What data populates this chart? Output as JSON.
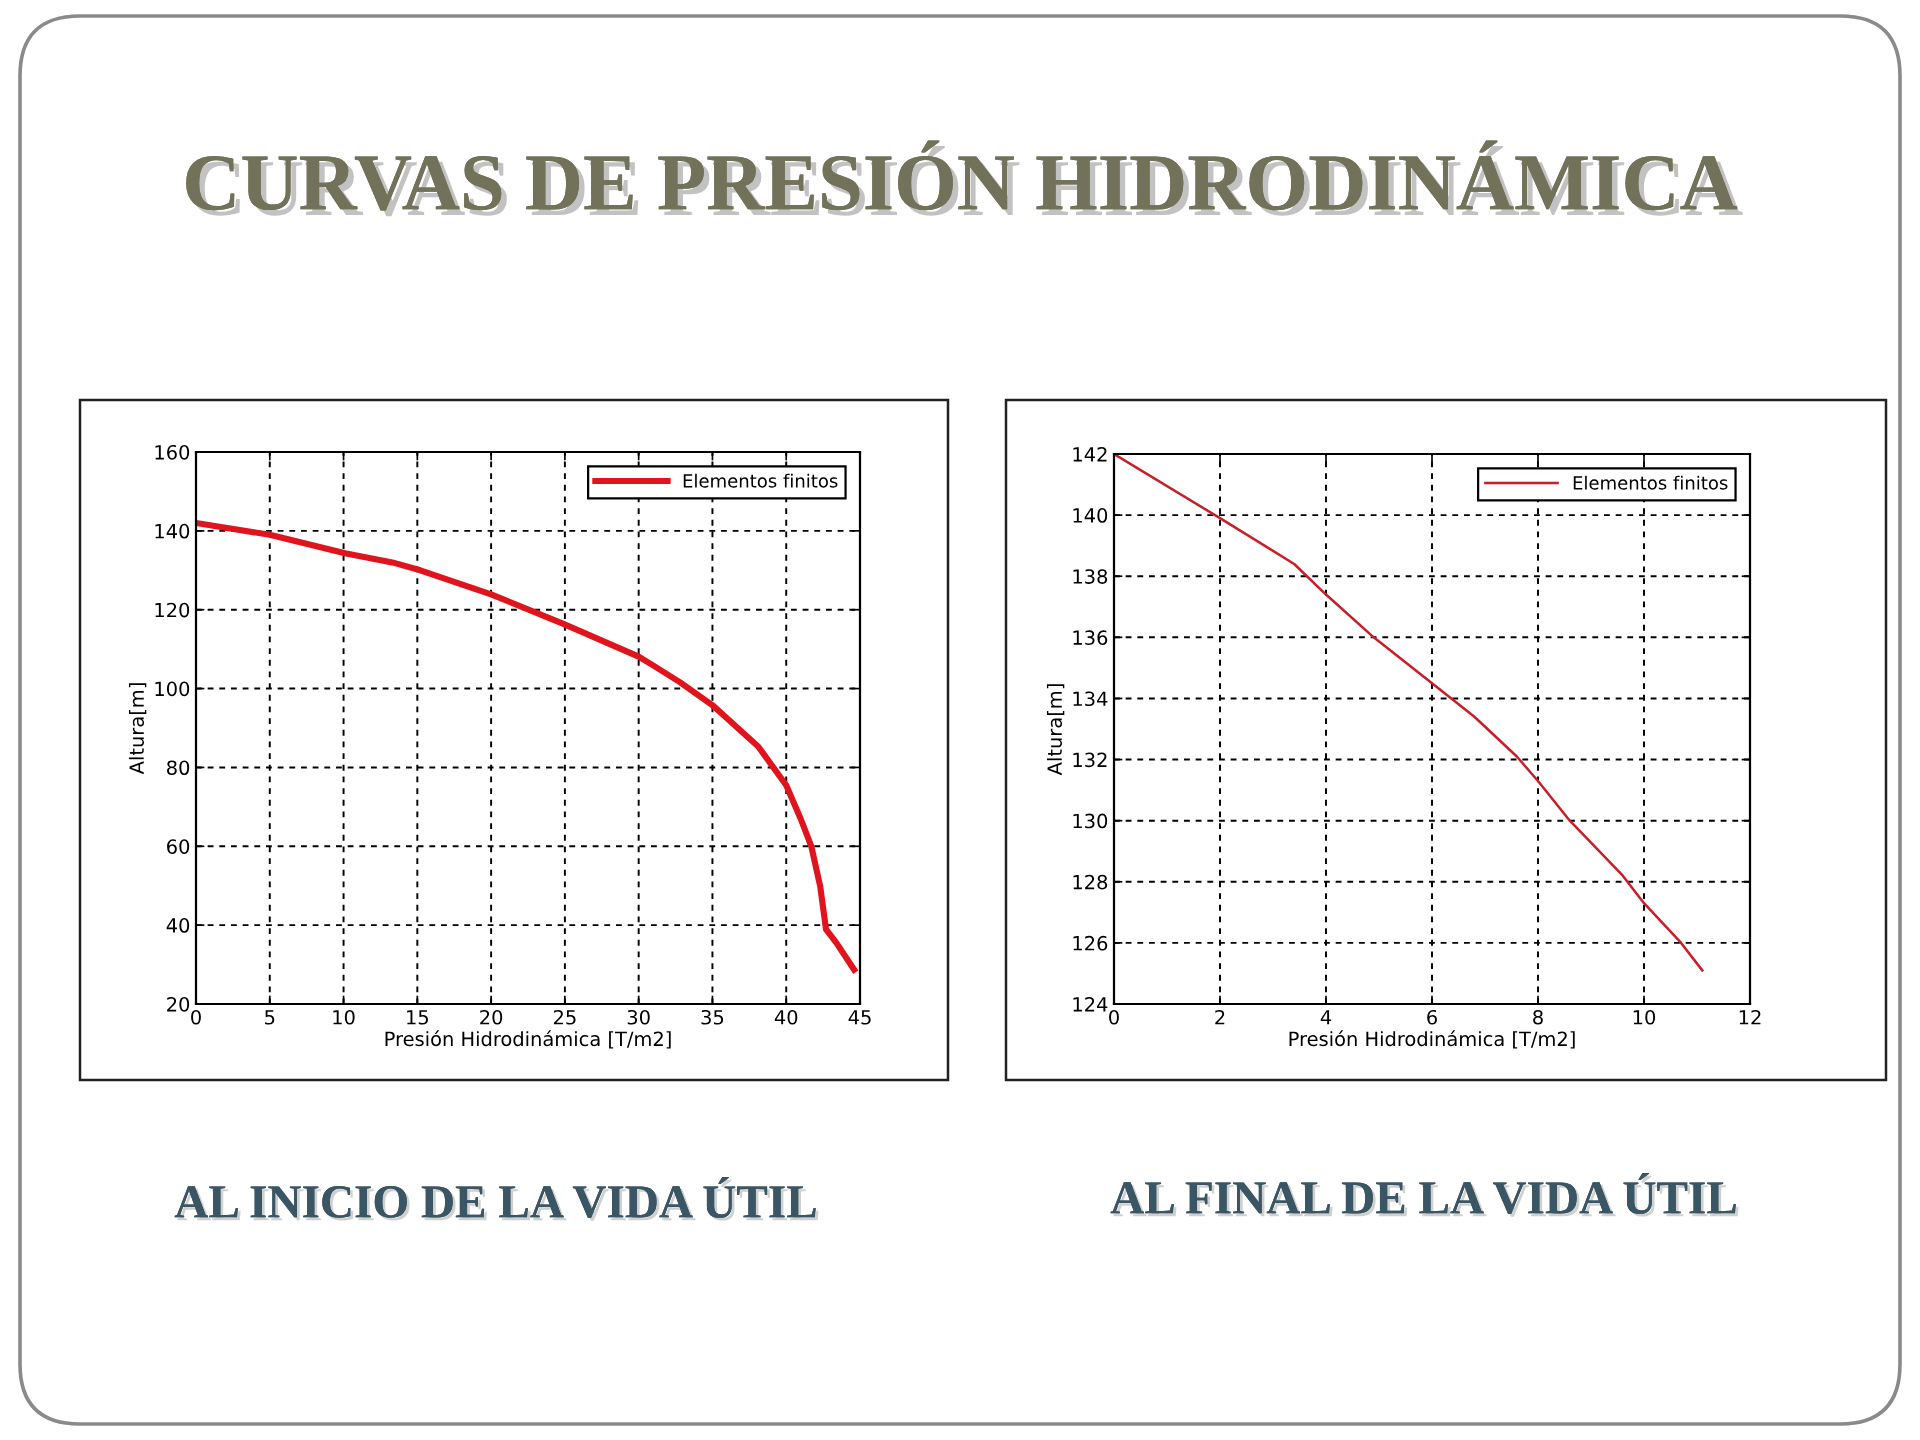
{
  "chart_data": [
    {
      "type": "line",
      "title": "AL INICIO DE LA VIDA ÚTIL",
      "annotations": [
        "CURVAS DE PRESIÓN HIDRODINÁMICA"
      ],
      "xlabel": "Presión Hidrodinámica [T/m2]",
      "ylabel": "Altura[m]",
      "x": [
        0,
        5,
        10.1,
        13.3,
        15.2,
        20,
        24.9,
        30,
        31.1,
        32.8,
        35,
        36,
        38.1,
        40,
        41,
        41.7,
        42.3,
        42.7,
        43.4,
        44.6
      ],
      "series": [
        {
          "name": "Elementos finitos",
          "color": "#e0141c",
          "values": [
            142,
            139,
            134.3,
            132,
            130,
            123.9,
            116.4,
            108.1,
            105.6,
            101.6,
            95.8,
            92.4,
            85.3,
            75.5,
            66.8,
            60,
            49.9,
            38.9,
            35.5,
            28.7
          ]
        }
      ],
      "xlim": [
        0,
        45
      ],
      "xticks": [
        0,
        5,
        10,
        15,
        20,
        25,
        30,
        35,
        40,
        45
      ],
      "ylim": [
        20,
        160
      ],
      "yticks": [
        20,
        40,
        60,
        80,
        100,
        120,
        140,
        160
      ],
      "grid": true,
      "legend": "top right"
    },
    {
      "type": "line",
      "title": "AL FINAL DE LA VIDA ÚTIL",
      "xlabel": "Presión Hidrodinámica [T/m2]",
      "ylabel": "Altura[m]",
      "x": [
        0,
        2,
        3.4,
        4,
        4.9,
        6,
        6.8,
        7.6,
        8,
        8.6,
        9.6,
        10,
        10.7,
        11.1
      ],
      "series": [
        {
          "name": "Elementos finitos",
          "color": "#c81e2a",
          "values": [
            142,
            139.9,
            138.4,
            137.4,
            136,
            134.5,
            133.4,
            132.1,
            131.3,
            130,
            128.2,
            127.3,
            126,
            125.1
          ]
        }
      ],
      "xlim": [
        0,
        12
      ],
      "xticks": [
        0,
        2,
        4,
        6,
        8,
        10,
        12
      ],
      "ylim": [
        124,
        142
      ],
      "yticks": [
        124,
        126,
        128,
        130,
        132,
        134,
        136,
        138,
        140,
        142
      ],
      "grid": true,
      "legend": "top right"
    }
  ]
}
